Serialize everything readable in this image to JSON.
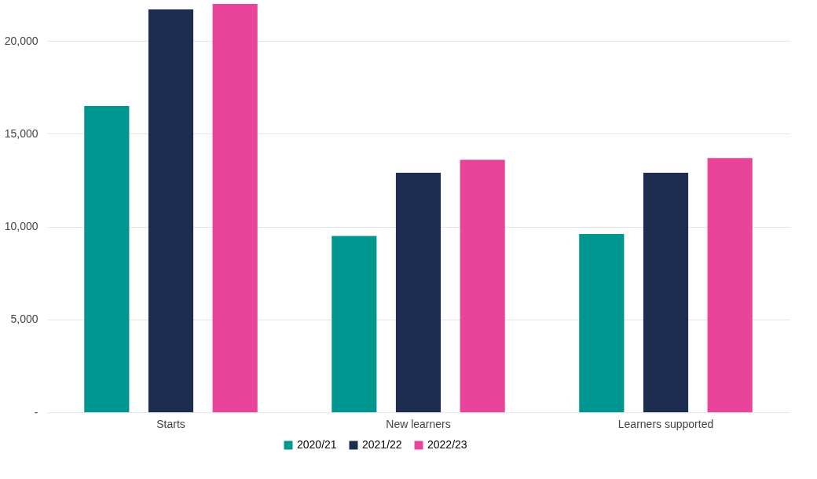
{
  "chart_data": {
    "type": "bar",
    "categories": [
      "Starts",
      "New learners",
      "Learners supported"
    ],
    "series": [
      {
        "name": "2020/21",
        "color": "#009690",
        "values": [
          16500,
          9500,
          9600
        ]
      },
      {
        "name": "2021/22",
        "color": "#1c2d4f",
        "values": [
          21700,
          12900,
          12900
        ]
      },
      {
        "name": "2022/23",
        "color": "#e8449a",
        "values": [
          22000,
          13600,
          13700
        ]
      }
    ],
    "yticks": [
      {
        "value": 0,
        "label": "-"
      },
      {
        "value": 5000,
        "label": "5,000"
      },
      {
        "value": 10000,
        "label": "10,000"
      },
      {
        "value": 15000,
        "label": "15,000"
      },
      {
        "value": 20000,
        "label": "20,000"
      }
    ],
    "ylim": [
      0,
      22000
    ],
    "grid": "y",
    "legend": "bottom"
  }
}
